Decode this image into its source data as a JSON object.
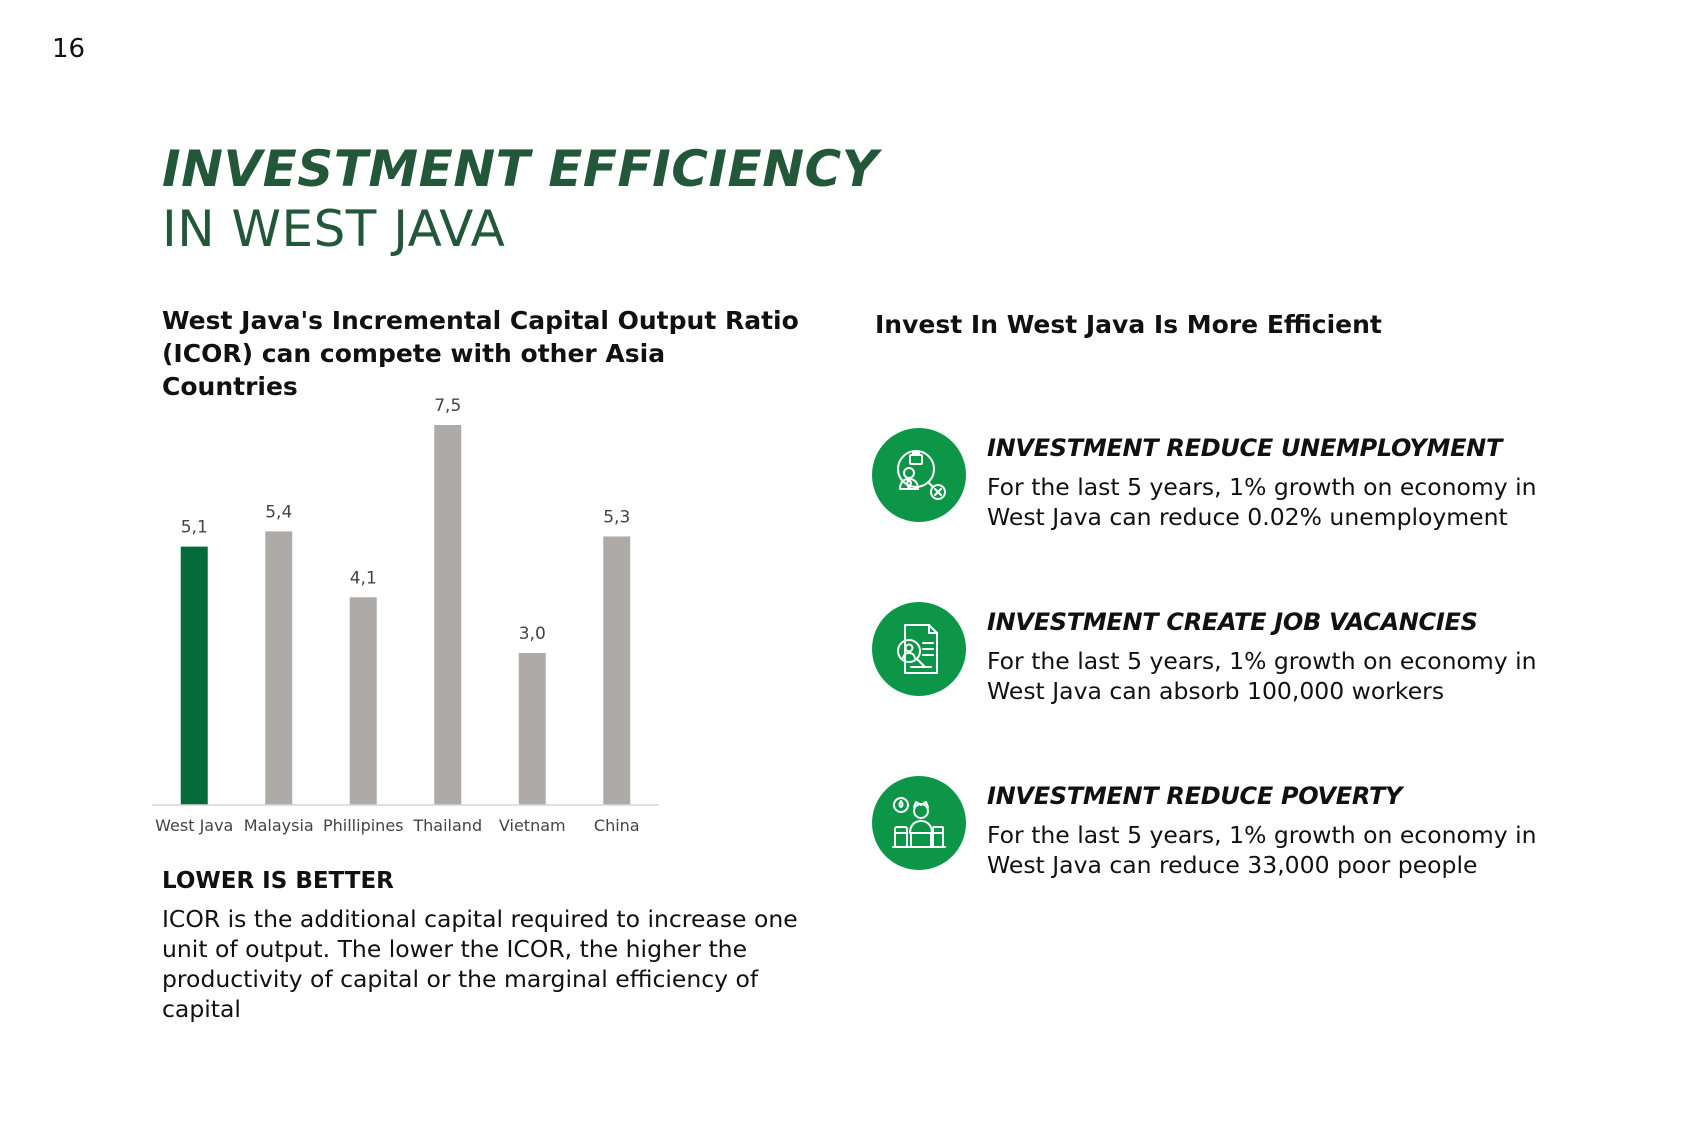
{
  "page_number": "16",
  "title": {
    "main": "INVESTMENT EFFICIENCY",
    "sub": "IN WEST JAVA"
  },
  "chart_section": {
    "heading": "West Java's Incremental Capital Output Ratio (ICOR) can compete with other Asia Countries"
  },
  "chart_data": {
    "type": "bar",
    "categories": [
      "West Java",
      "Malaysia",
      "Phillipines",
      "Thailand",
      "Vietnam",
      "China"
    ],
    "values": [
      5.1,
      5.4,
      4.1,
      7.5,
      3.0,
      5.3
    ],
    "value_labels": [
      "5,1",
      "5,4",
      "4,1",
      "7,5",
      "3,0",
      "5,3"
    ],
    "highlight_index": 0,
    "colors": {
      "highlight": "#066b3b",
      "default": "#aeaaa8",
      "axis": "#d6d6d6",
      "label": "#444444"
    },
    "title": "",
    "xlabel": "",
    "ylabel": "",
    "ylim": [
      0,
      7.5
    ],
    "grid": false
  },
  "lower_is_better": {
    "heading": "LOWER IS BETTER",
    "text": "ICOR is the additional capital required to increase one unit of output. The lower the ICOR, the higher the productivity of capital or the marginal efficiency of capital"
  },
  "right_section": {
    "heading": "Invest In West Java Is More Efficient",
    "accent_color": "#0e9648",
    "items": [
      {
        "icon": "unemployment-icon",
        "title": "INVESTMENT REDUCE UNEMPLOYMENT",
        "text": "For the last 5 years, 1% growth on economy in West Java can reduce 0.02% unemployment"
      },
      {
        "icon": "job-search-icon",
        "title": "INVESTMENT CREATE JOB VACANCIES",
        "text": "For the last 5 years, 1% growth on economy in West Java can absorb 100,000 workers"
      },
      {
        "icon": "poverty-icon",
        "title": "INVESTMENT REDUCE POVERTY",
        "text": "For the last 5 years, 1% growth on economy in West Java can reduce 33,000 poor people"
      }
    ]
  }
}
